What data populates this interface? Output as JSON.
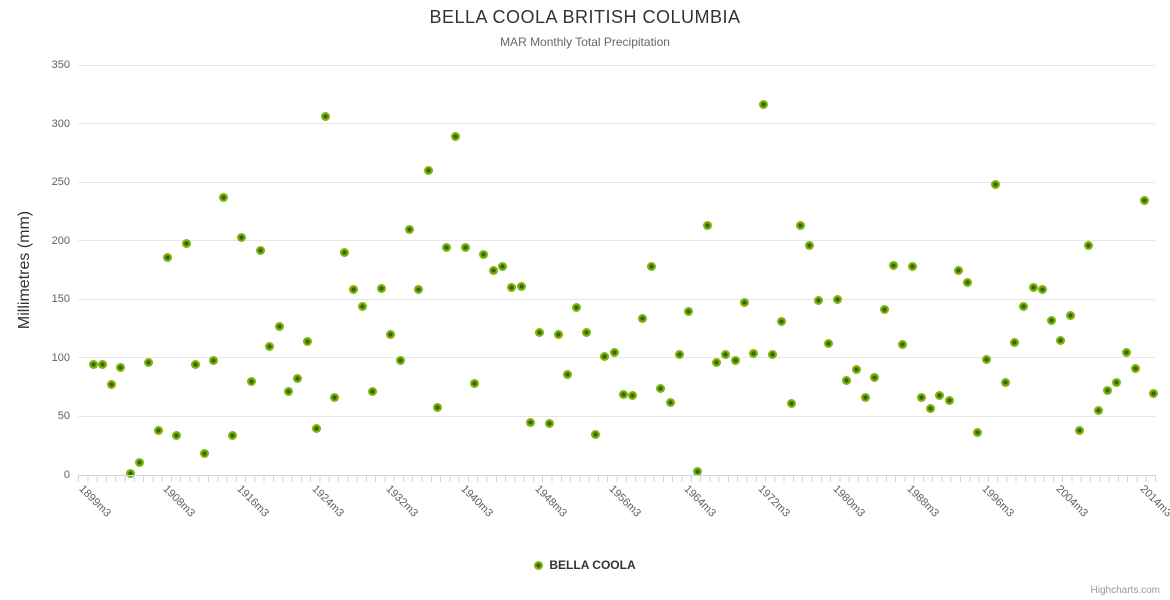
{
  "chart": {
    "credits": "Highcharts.com"
  },
  "chart_data": {
    "type": "scatter",
    "title": "BELLA COOLA BRITISH COLUMBIA",
    "subtitle": "MAR Monthly Total Precipitation",
    "xlabel": "",
    "ylabel": "Millimetres (mm)",
    "ylim": [
      0,
      350
    ],
    "y_ticks": [
      0,
      50,
      100,
      150,
      200,
      250,
      300,
      350
    ],
    "grid": "horizontal",
    "legend_position": "bottom-center",
    "x_tick_labels": [
      {
        "index": 0,
        "label": "1899m3"
      },
      {
        "index": 9,
        "label": "1908m3"
      },
      {
        "index": 17,
        "label": "1916m3"
      },
      {
        "index": 25,
        "label": "1924m3"
      },
      {
        "index": 33,
        "label": "1932m3"
      },
      {
        "index": 41,
        "label": "1940m3"
      },
      {
        "index": 49,
        "label": "1948m3"
      },
      {
        "index": 57,
        "label": "1956m3"
      },
      {
        "index": 65,
        "label": "1964m3"
      },
      {
        "index": 73,
        "label": "1972m3"
      },
      {
        "index": 81,
        "label": "1980m3"
      },
      {
        "index": 89,
        "label": "1988m3"
      },
      {
        "index": 97,
        "label": "1996m3"
      },
      {
        "index": 105,
        "label": "2004m3"
      },
      {
        "index": 114,
        "label": "2014m3"
      }
    ],
    "series": [
      {
        "name": "BELLA COOLA",
        "color": "#7bb50a",
        "marker_inner_color": "#3a620d",
        "values": [
          94,
          94,
          77,
          92,
          1,
          11,
          96,
          38,
          186,
          34,
          198,
          94,
          18,
          98,
          237,
          34,
          203,
          80,
          192,
          110,
          127,
          71,
          82,
          114,
          40,
          306,
          66,
          190,
          158,
          144,
          71,
          159,
          120,
          98,
          210,
          158,
          260,
          58,
          194,
          289,
          194,
          78,
          188,
          175,
          178,
          160,
          161,
          45,
          122,
          44,
          120,
          86,
          143,
          122,
          35,
          101,
          105,
          69,
          68,
          134,
          178,
          74,
          62,
          103,
          140,
          3,
          213,
          96,
          103,
          98,
          147,
          104,
          316,
          103,
          131,
          61,
          213,
          196,
          149,
          112,
          150,
          81,
          90,
          66,
          83,
          141,
          179,
          111,
          178,
          66,
          57,
          68,
          64,
          175,
          164,
          36,
          99,
          248,
          79,
          113,
          144,
          160,
          158,
          132,
          115,
          136,
          38,
          196,
          55,
          72,
          79,
          105,
          91,
          234,
          70
        ]
      }
    ],
    "colors": {
      "grid": "#e6e6e6",
      "axis_line": "#ccd6eb",
      "title_text": "#333333",
      "subtitle_text": "#666666",
      "axis_label_text": "#606060"
    }
  }
}
